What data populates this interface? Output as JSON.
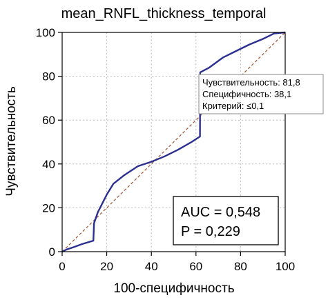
{
  "chart_data": {
    "type": "line",
    "title": "mean_RNFL_thickness_temporal",
    "xlabel": "100-специфичность",
    "ylabel": "Чувствительность",
    "xlim": [
      0,
      100
    ],
    "ylim": [
      0,
      100
    ],
    "xticks": [
      0,
      20,
      40,
      60,
      80,
      100
    ],
    "yticks": [
      0,
      20,
      40,
      60,
      80,
      100
    ],
    "grid": true,
    "series": [
      {
        "color": "#2b2f8f",
        "x": [
          0,
          2,
          5,
          9,
          14,
          14.3,
          16,
          20,
          23,
          28,
          34,
          40,
          46,
          52,
          58,
          61.8,
          61.9,
          66,
          72,
          78,
          84,
          90,
          95,
          100
        ],
        "y": [
          0,
          1,
          2,
          3.5,
          5,
          13,
          18,
          26,
          31,
          35,
          39,
          41,
          43.5,
          46.5,
          50,
          52.5,
          81.8,
          84,
          88.5,
          91.5,
          94.5,
          97,
          99.5,
          100
        ]
      },
      {
        "color": "#a0522d",
        "dashed": true,
        "x": [
          0,
          100
        ],
        "y": [
          0,
          100
        ]
      }
    ],
    "annotation": {
      "x": 61.8,
      "y": 81.8,
      "lines": [
        "Чувствительность: 81,8",
        "Специфичность: 38,1",
        "Критерий: ≤0,1"
      ]
    },
    "stats": {
      "auc": "AUC = 0,548",
      "p": "P = 0,229"
    }
  }
}
